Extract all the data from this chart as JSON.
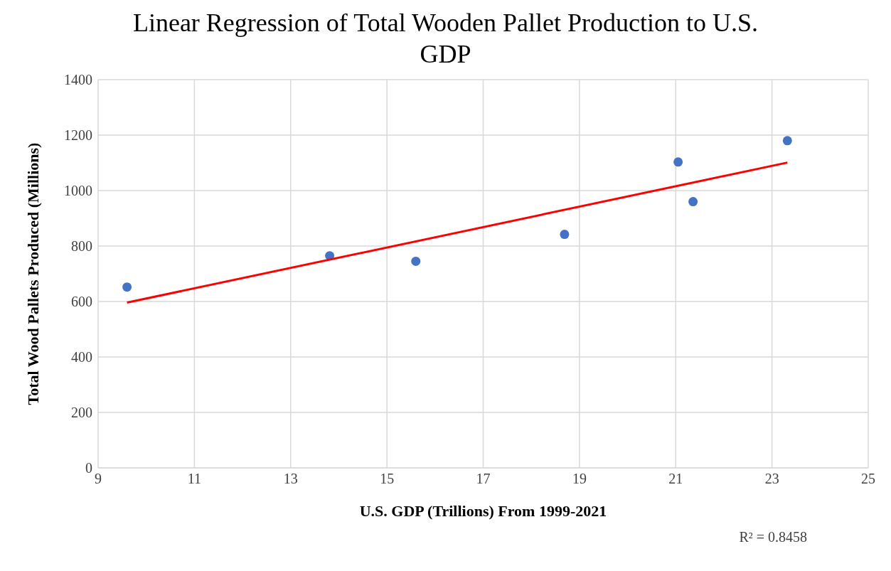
{
  "chart_data": {
    "type": "scatter",
    "title": "Linear Regression of Total Wooden Pallet Production to U.S. GDP",
    "xlabel": "U.S. GDP (Trillions) From 1999-2021",
    "ylabel": "Total Wood Pallets Produced (Millions)",
    "xlim": [
      9,
      25
    ],
    "xticks": [
      9,
      11,
      13,
      15,
      17,
      19,
      21,
      23,
      25
    ],
    "ylim": [
      0,
      1400
    ],
    "yticks": [
      0,
      200,
      400,
      600,
      800,
      1000,
      1200,
      1400
    ],
    "grid": true,
    "series": [
      {
        "marker": "circle",
        "color": "#4472c4",
        "x": [
          9.6,
          13.81,
          15.6,
          18.69,
          21.05,
          21.36,
          23.32
        ],
        "values": [
          652,
          765,
          745,
          842,
          1103,
          960,
          1180
        ]
      },
      {
        "type": "line",
        "color": "#ff0000",
        "x": [
          9.6,
          23.32
        ],
        "values": [
          596,
          1101
        ]
      }
    ],
    "annotations": [
      "R² = 0.8458"
    ]
  }
}
